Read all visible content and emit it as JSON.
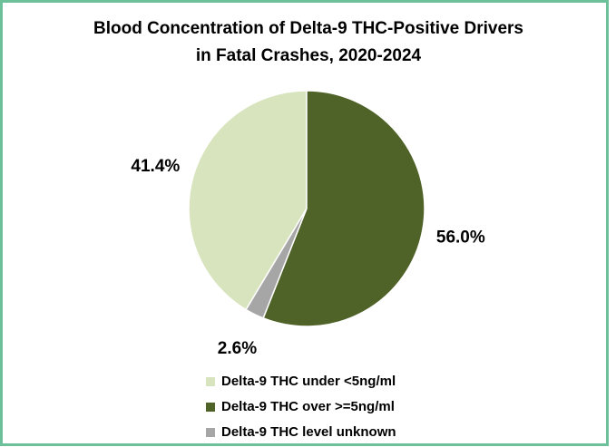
{
  "chart_data": {
    "type": "pie",
    "title": [
      "Blood Concentration of Delta-9 THC-Positive Drivers",
      "in Fatal Crashes, 2020-2024"
    ],
    "categories": [
      "Delta-9 THC under <5ng/ml",
      "Delta-9 THC over >=5ng/ml",
      "Delta-9 THC level unknown"
    ],
    "values": [
      41.4,
      56,
      2.6
    ],
    "value_labels": [
      "41.4%",
      "56.0%",
      "2.6%"
    ],
    "colors": [
      "#d7e4bd",
      "#4f6228",
      "#a6a6a6"
    ],
    "legend": "bottom"
  }
}
